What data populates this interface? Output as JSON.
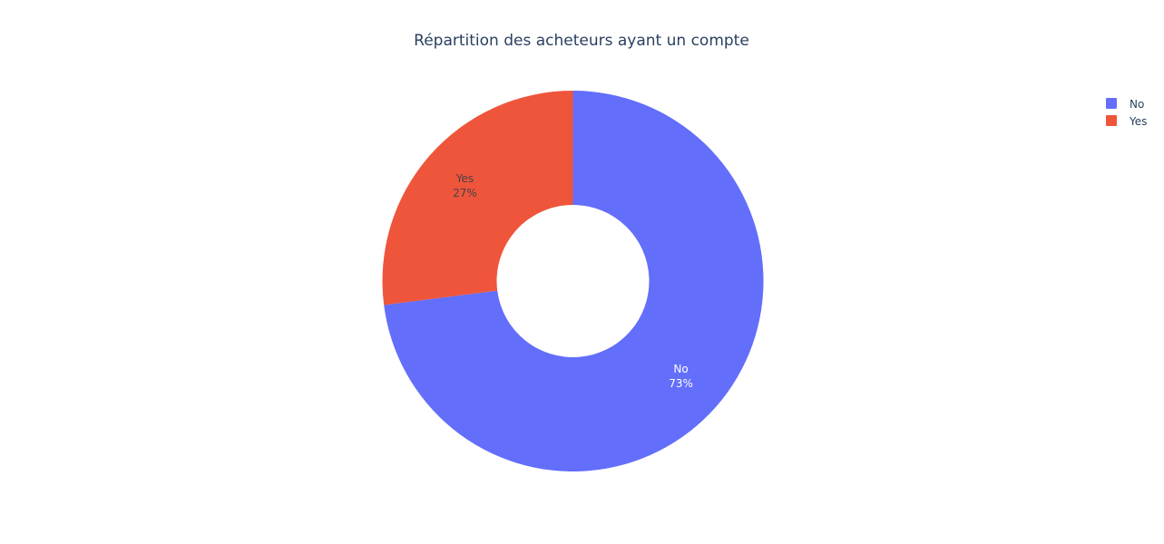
{
  "chart_data": {
    "type": "pie",
    "title": "Répartition des acheteurs ayant un compte",
    "hole": 0.4,
    "categories": [
      "No",
      "Yes"
    ],
    "values": [
      73,
      27
    ],
    "percent_labels": [
      "73%",
      "27%"
    ],
    "colors": [
      "#636efa",
      "#ef553b"
    ],
    "label_colors": [
      "#ffffff",
      "#444444"
    ],
    "legend": {
      "position": "top-right",
      "entries": [
        "No",
        "Yes"
      ]
    }
  }
}
